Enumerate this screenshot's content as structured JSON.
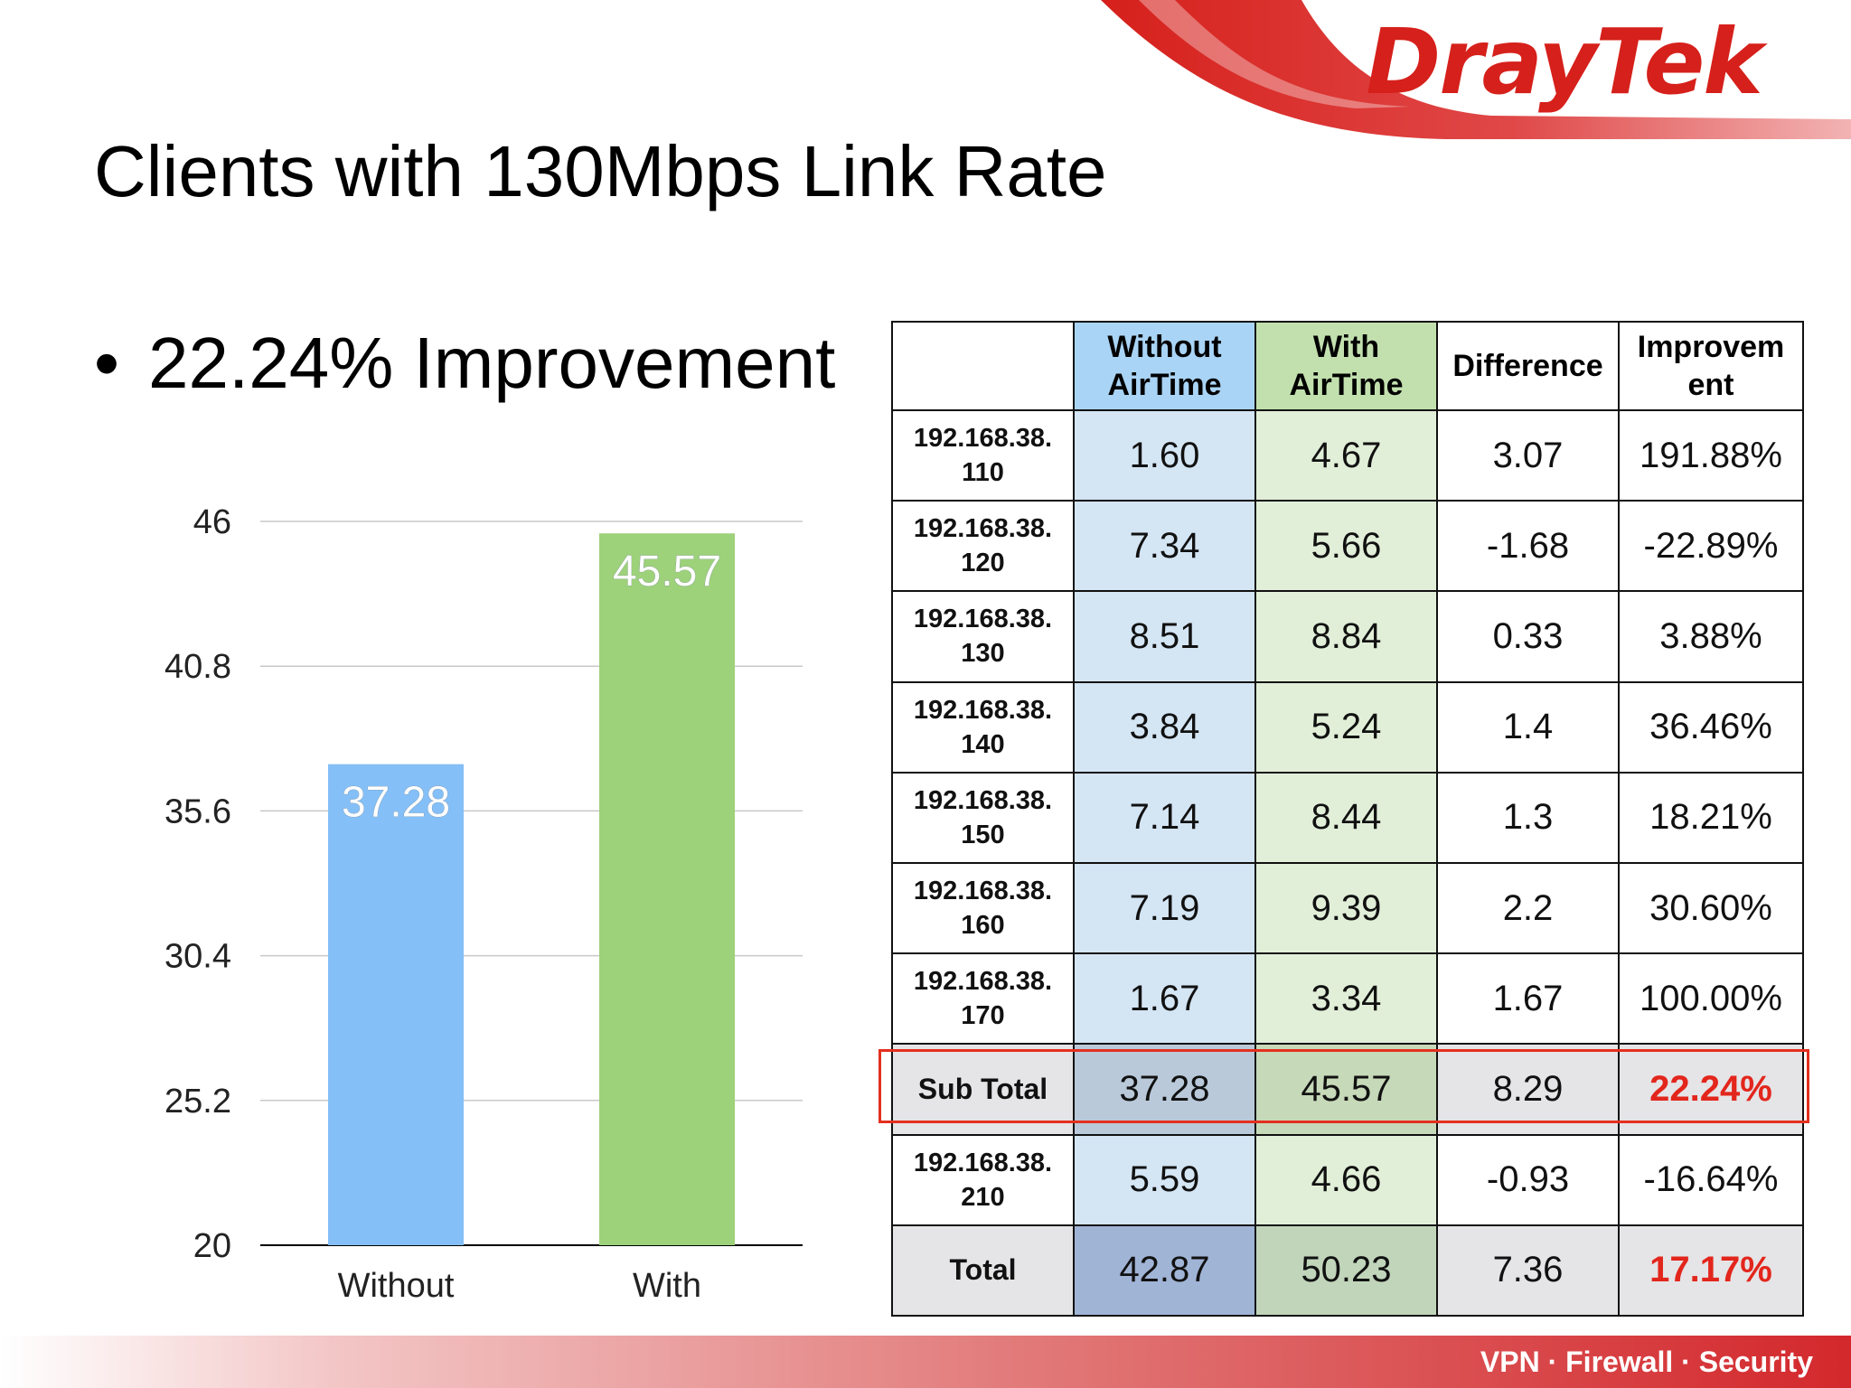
{
  "brand": {
    "logo_text": "DrayTek",
    "tagline": "VPN · Firewall · Security",
    "colors": {
      "red": "#d6201b"
    }
  },
  "slide": {
    "title": "Clients with 130Mbps Link Rate",
    "bullet": "22.24% Improvement"
  },
  "chart_data": {
    "type": "bar",
    "categories": [
      "Without",
      "With"
    ],
    "values": [
      37.28,
      45.57
    ],
    "value_labels": [
      "37.28",
      "45.57"
    ],
    "colors": [
      "#84bff7",
      "#9dd17a"
    ],
    "ylim": [
      20,
      46
    ],
    "yticks": [
      "20",
      "25.2",
      "30.4",
      "35.6",
      "40.8",
      "46"
    ],
    "ytick_values": [
      20,
      25.2,
      30.4,
      35.6,
      40.8,
      46
    ],
    "grid": true,
    "legend": "none"
  },
  "table": {
    "headers": [
      "",
      "Without\nAirTime",
      "With\nAirTime",
      "Difference",
      "Improvem\nent"
    ],
    "rows": [
      {
        "label": "192.168.38.\n110",
        "without": "1.60",
        "with": "4.67",
        "diff": "3.07",
        "impr": "191.88%"
      },
      {
        "label": "192.168.38.\n120",
        "without": "7.34",
        "with": "5.66",
        "diff": "-1.68",
        "impr": "-22.89%"
      },
      {
        "label": "192.168.38.\n130",
        "without": "8.51",
        "with": "8.84",
        "diff": "0.33",
        "impr": "3.88%"
      },
      {
        "label": "192.168.38.\n140",
        "without": "3.84",
        "with": "5.24",
        "diff": "1.4",
        "impr": "36.46%"
      },
      {
        "label": "192.168.38.\n150",
        "without": "7.14",
        "with": "8.44",
        "diff": "1.3",
        "impr": "18.21%"
      },
      {
        "label": "192.168.38.\n160",
        "without": "7.19",
        "with": "9.39",
        "diff": "2.2",
        "impr": "30.60%"
      },
      {
        "label": "192.168.38.\n170",
        "without": "1.67",
        "with": "3.34",
        "diff": "1.67",
        "impr": "100.00%"
      },
      {
        "label": "Sub Total",
        "without": "37.28",
        "with": "45.57",
        "diff": "8.29",
        "impr": "22.24%"
      },
      {
        "label": "192.168.38.\n210",
        "without": "5.59",
        "with": "4.66",
        "diff": "-0.93",
        "impr": "-16.64%"
      },
      {
        "label": "Total",
        "without": "42.87",
        "with": "50.23",
        "diff": "7.36",
        "impr": "17.17%"
      }
    ]
  }
}
